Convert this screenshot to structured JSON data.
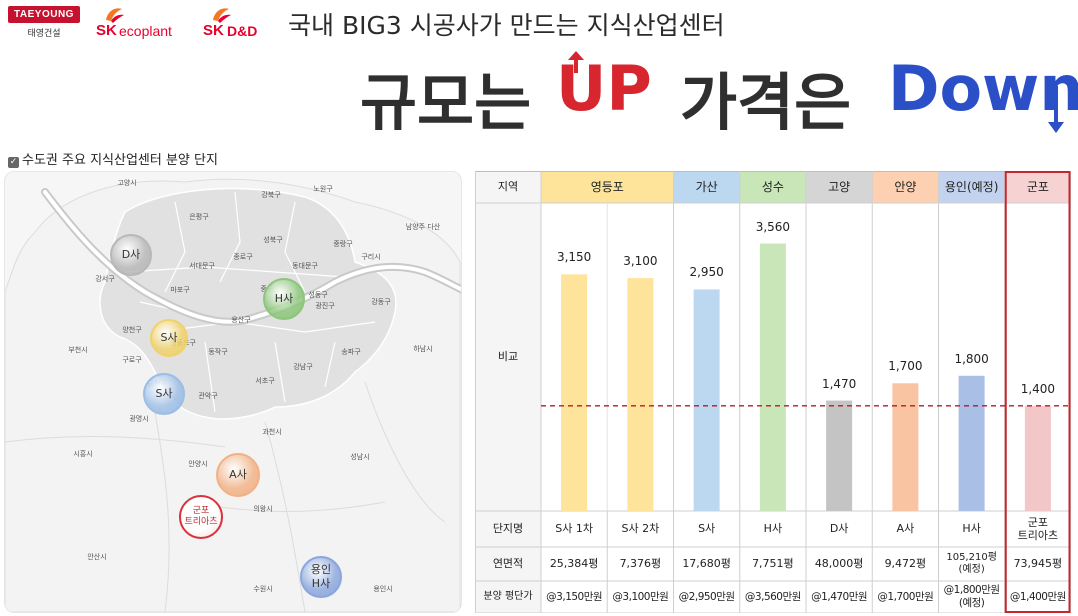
{
  "logos": {
    "taeyoung_en": "TAEYOUNG",
    "taeyoung_kr": "태영건설",
    "sk1_brand": "SK",
    "sk1_rest": "ecoplant",
    "sk2_brand": "SK",
    "sk2_rest": "D&D"
  },
  "header": {
    "subtitle": "국내 BIG3 시공사가 만드는 지식산업센터",
    "headline_a": "규모는",
    "headline_up": "UP",
    "headline_b": "가격은",
    "headline_down": "Down"
  },
  "section_label": "수도권 주요 지식산업센터 분양 단지",
  "map": {
    "districts": [
      "고양시",
      "강북구",
      "노원구",
      "은평구",
      "성북구",
      "중랑구",
      "남양주 다산",
      "서대문구",
      "종로구",
      "동대문구",
      "구리시",
      "강서구",
      "마포구",
      "중구",
      "성동구",
      "광진구",
      "강동구",
      "양천구",
      "용산구",
      "영등포구",
      "동작구",
      "구로구",
      "송파구",
      "부천시",
      "하남시",
      "강남구",
      "서초구",
      "금천구",
      "관악구",
      "광명시",
      "과천시",
      "시흥시",
      "성남시",
      "안양시",
      "의왕시",
      "안산시",
      "수원시",
      "용인시"
    ],
    "markers": [
      {
        "label": "D사",
        "color": "#b8b8b8"
      },
      {
        "label": "H사",
        "color": "#8cc67a"
      },
      {
        "label": "S사",
        "color": "#f0d268"
      },
      {
        "label": "S사",
        "color": "#9bbde6"
      },
      {
        "label": "A사",
        "color": "#f2b184"
      },
      {
        "label": "군포\n트리아츠",
        "color": "#d9323b"
      },
      {
        "label": "용인\nH사",
        "color": "#8aa6dc"
      }
    ]
  },
  "chart_data": {
    "type": "bar",
    "row_labels": {
      "region": "지역",
      "compare": "비교",
      "complex": "단지명",
      "area": "연면적",
      "price": "분양 평단가"
    },
    "regions": [
      {
        "name": "영등포",
        "span": 2,
        "color": "#fde49a"
      },
      {
        "name": "가산",
        "span": 1,
        "color": "#bcd8f1"
      },
      {
        "name": "성수",
        "span": 1,
        "color": "#c8e6b7"
      },
      {
        "name": "고양",
        "span": 1,
        "color": "#d5d5d5"
      },
      {
        "name": "안양",
        "span": 1,
        "color": "#fcd0b0"
      },
      {
        "name": "용인(예정)",
        "span": 1,
        "color": "#c3d3ef"
      },
      {
        "name": "군포",
        "span": 1,
        "color": "#f7d2d3"
      }
    ],
    "categories": [
      "S사 1차",
      "S사 2차",
      "S사",
      "H사",
      "D사",
      "A사",
      "H사",
      "군포\n트리아츠"
    ],
    "values": [
      3150,
      3100,
      2950,
      3560,
      1470,
      1700,
      1800,
      1400
    ],
    "value_labels": [
      "3,150",
      "3,100",
      "2,950",
      "3,560",
      "1,470",
      "1,700",
      "1,800",
      "1,400"
    ],
    "bar_colors": [
      "#fde49a",
      "#fde49a",
      "#bcd8f1",
      "#c8e6b7",
      "#c4c4c4",
      "#f8c4a2",
      "#a9bfe6",
      "#f3c6c8"
    ],
    "areas": [
      "25,384평",
      "7,376평",
      "17,680평",
      "7,751평",
      "48,000평",
      "9,472평",
      "105,210평\n(예정)",
      "73,945평"
    ],
    "prices": [
      "@3,150만원",
      "@3,100만원",
      "@2,950만원",
      "@3,560만원",
      "@1,470만원",
      "@1,700만원",
      "@1,800만원\n(예정)",
      "@1,400만원"
    ],
    "reference_value": 1400,
    "highlight_column": 7,
    "highlight_color": "#c7262e",
    "ylim": [
      0,
      4100
    ]
  }
}
